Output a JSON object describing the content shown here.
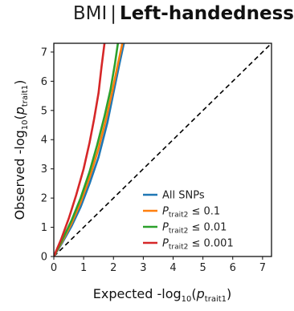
{
  "title": {
    "left": "BMI",
    "separator": "|",
    "right": "Left-handedness"
  },
  "chart_data": {
    "type": "line",
    "xlabel": "Expected -log10(p_trait1)",
    "ylabel": "Observed -log10(p_trait1)",
    "xlim": [
      0,
      7.3
    ],
    "ylim": [
      0,
      7.3
    ],
    "xticks": [
      "0",
      "1",
      "2",
      "3",
      "4",
      "5",
      "6",
      "7"
    ],
    "yticks": [
      "0",
      "1",
      "2",
      "3",
      "4",
      "5",
      "6",
      "7"
    ],
    "grid": false,
    "legend_position": "bottom-right",
    "reference_line": {
      "style": "dashed",
      "color": "#000000",
      "x": [
        0,
        7.3
      ],
      "y": [
        0,
        7.3
      ]
    },
    "series": [
      {
        "name": "All SNPs",
        "legend_label": "All SNPs",
        "color": "#1f77b4",
        "x": [
          0,
          0.3,
          0.6,
          0.9,
          1.2,
          1.5,
          1.8,
          2.0,
          2.2,
          2.35
        ],
        "y": [
          0,
          0.5,
          1.05,
          1.7,
          2.5,
          3.4,
          4.6,
          5.6,
          6.6,
          7.3
        ]
      },
      {
        "name": "P_trait2 ≤ 0.1",
        "legend_label": {
          "p": "P",
          "sub": "trait2",
          "rest": "≤ 0.1"
        },
        "color": "#ff7f0e",
        "x": [
          0,
          0.3,
          0.6,
          0.9,
          1.2,
          1.5,
          1.75,
          1.95,
          2.15,
          2.3
        ],
        "y": [
          0,
          0.55,
          1.15,
          1.85,
          2.7,
          3.7,
          4.7,
          5.6,
          6.6,
          7.3
        ]
      },
      {
        "name": "P_trait2 ≤ 0.01",
        "legend_label": {
          "p": "P",
          "sub": "trait2",
          "rest": "≤ 0.01"
        },
        "color": "#2ca02c",
        "x": [
          0,
          0.3,
          0.6,
          0.9,
          1.2,
          1.45,
          1.7,
          1.9,
          2.05,
          2.15
        ],
        "y": [
          0,
          0.6,
          1.25,
          2.0,
          2.9,
          3.8,
          4.8,
          5.7,
          6.6,
          7.3
        ]
      },
      {
        "name": "P_trait2 ≤ 0.001",
        "legend_label": {
          "p": "P",
          "sub": "trait2",
          "rest": "≤ 0.001"
        },
        "color": "#d62728",
        "x": [
          0,
          0.25,
          0.5,
          0.75,
          1.0,
          1.2,
          1.35,
          1.5,
          1.6,
          1.7
        ],
        "y": [
          0,
          0.6,
          1.3,
          2.1,
          3.0,
          3.9,
          4.7,
          5.6,
          6.5,
          7.3
        ]
      }
    ]
  }
}
